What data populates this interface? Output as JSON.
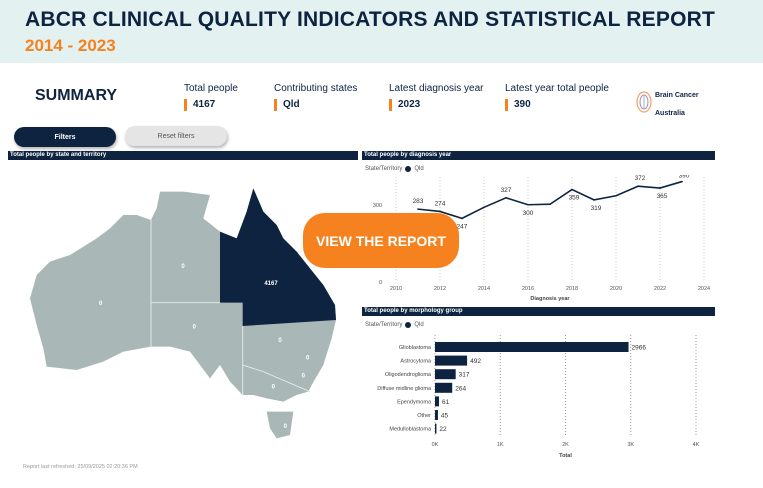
{
  "header": {
    "title": "ABCR CLINICAL QUALITY INDICATORS AND STATISTICAL REPORT",
    "years": "2014 - 2023"
  },
  "summary": {
    "title": "SUMMARY",
    "kpis": [
      {
        "label": "Total people",
        "value": "4167"
      },
      {
        "label": "Contributing states",
        "value": "Qld"
      },
      {
        "label": "Latest diagnosis year",
        "value": "2023"
      },
      {
        "label": "Latest year total people",
        "value": "390"
      }
    ]
  },
  "logo": {
    "line1": "Brain Cancer",
    "line2": "Australia"
  },
  "buttons": {
    "filters": "Filters",
    "reset": "Reset filters",
    "cta": "VIEW THE REPORT"
  },
  "map": {
    "title": "Total people by state and territory",
    "states": [
      {
        "name": "WA",
        "value": "0"
      },
      {
        "name": "NT",
        "value": "0"
      },
      {
        "name": "QLD",
        "value": "4167"
      },
      {
        "name": "SA",
        "value": "0"
      },
      {
        "name": "NSW",
        "value": "0"
      },
      {
        "name": "NSW2",
        "value": "0"
      },
      {
        "name": "ACT",
        "value": "0"
      },
      {
        "name": "VIC",
        "value": "0"
      },
      {
        "name": "TAS",
        "value": "0"
      }
    ],
    "highlight_color": "#0d2340",
    "base_color": "#a9b8b6"
  },
  "chart_data": [
    {
      "type": "line",
      "title": "Total people by diagnosis year",
      "legend_label": "State/Territory",
      "series_name": "Qld",
      "xlabel": "Diagnosis year",
      "ylabel": "",
      "x": [
        2011,
        2012,
        2013,
        2014,
        2015,
        2016,
        2017,
        2018,
        2019,
        2020,
        2021,
        2022,
        2023
      ],
      "values": [
        283,
        274,
        247,
        290,
        327,
        300,
        302,
        359,
        319,
        335,
        372,
        365,
        390
      ],
      "labeled": [
        true,
        true,
        true,
        false,
        true,
        true,
        false,
        true,
        true,
        false,
        true,
        true,
        true
      ],
      "xticks": [
        "2010",
        "2012",
        "2014",
        "2016",
        "2018",
        "2020",
        "2022",
        "2024"
      ],
      "xlim": [
        2010,
        2024
      ],
      "yticks": [
        "0",
        "300"
      ],
      "ylim": [
        0,
        400
      ]
    },
    {
      "type": "bar",
      "title": "Total people by morphology group",
      "legend_label": "State/Territory",
      "series_name": "Qld",
      "xlabel": "Total",
      "categories": [
        "Glioblastoma",
        "Astrocytoma",
        "Oligodendroglioma",
        "Diffuse midline glioma",
        "Ependymoma",
        "Other",
        "Medulloblastoma"
      ],
      "values": [
        2966,
        492,
        317,
        264,
        61,
        45,
        22
      ],
      "xticks": [
        "0K",
        "1K",
        "2K",
        "3K",
        "4K"
      ],
      "xlim": [
        0,
        4000
      ]
    }
  ],
  "footer": "Report last refreshed: 25/09/2025 02:20:36 PM"
}
